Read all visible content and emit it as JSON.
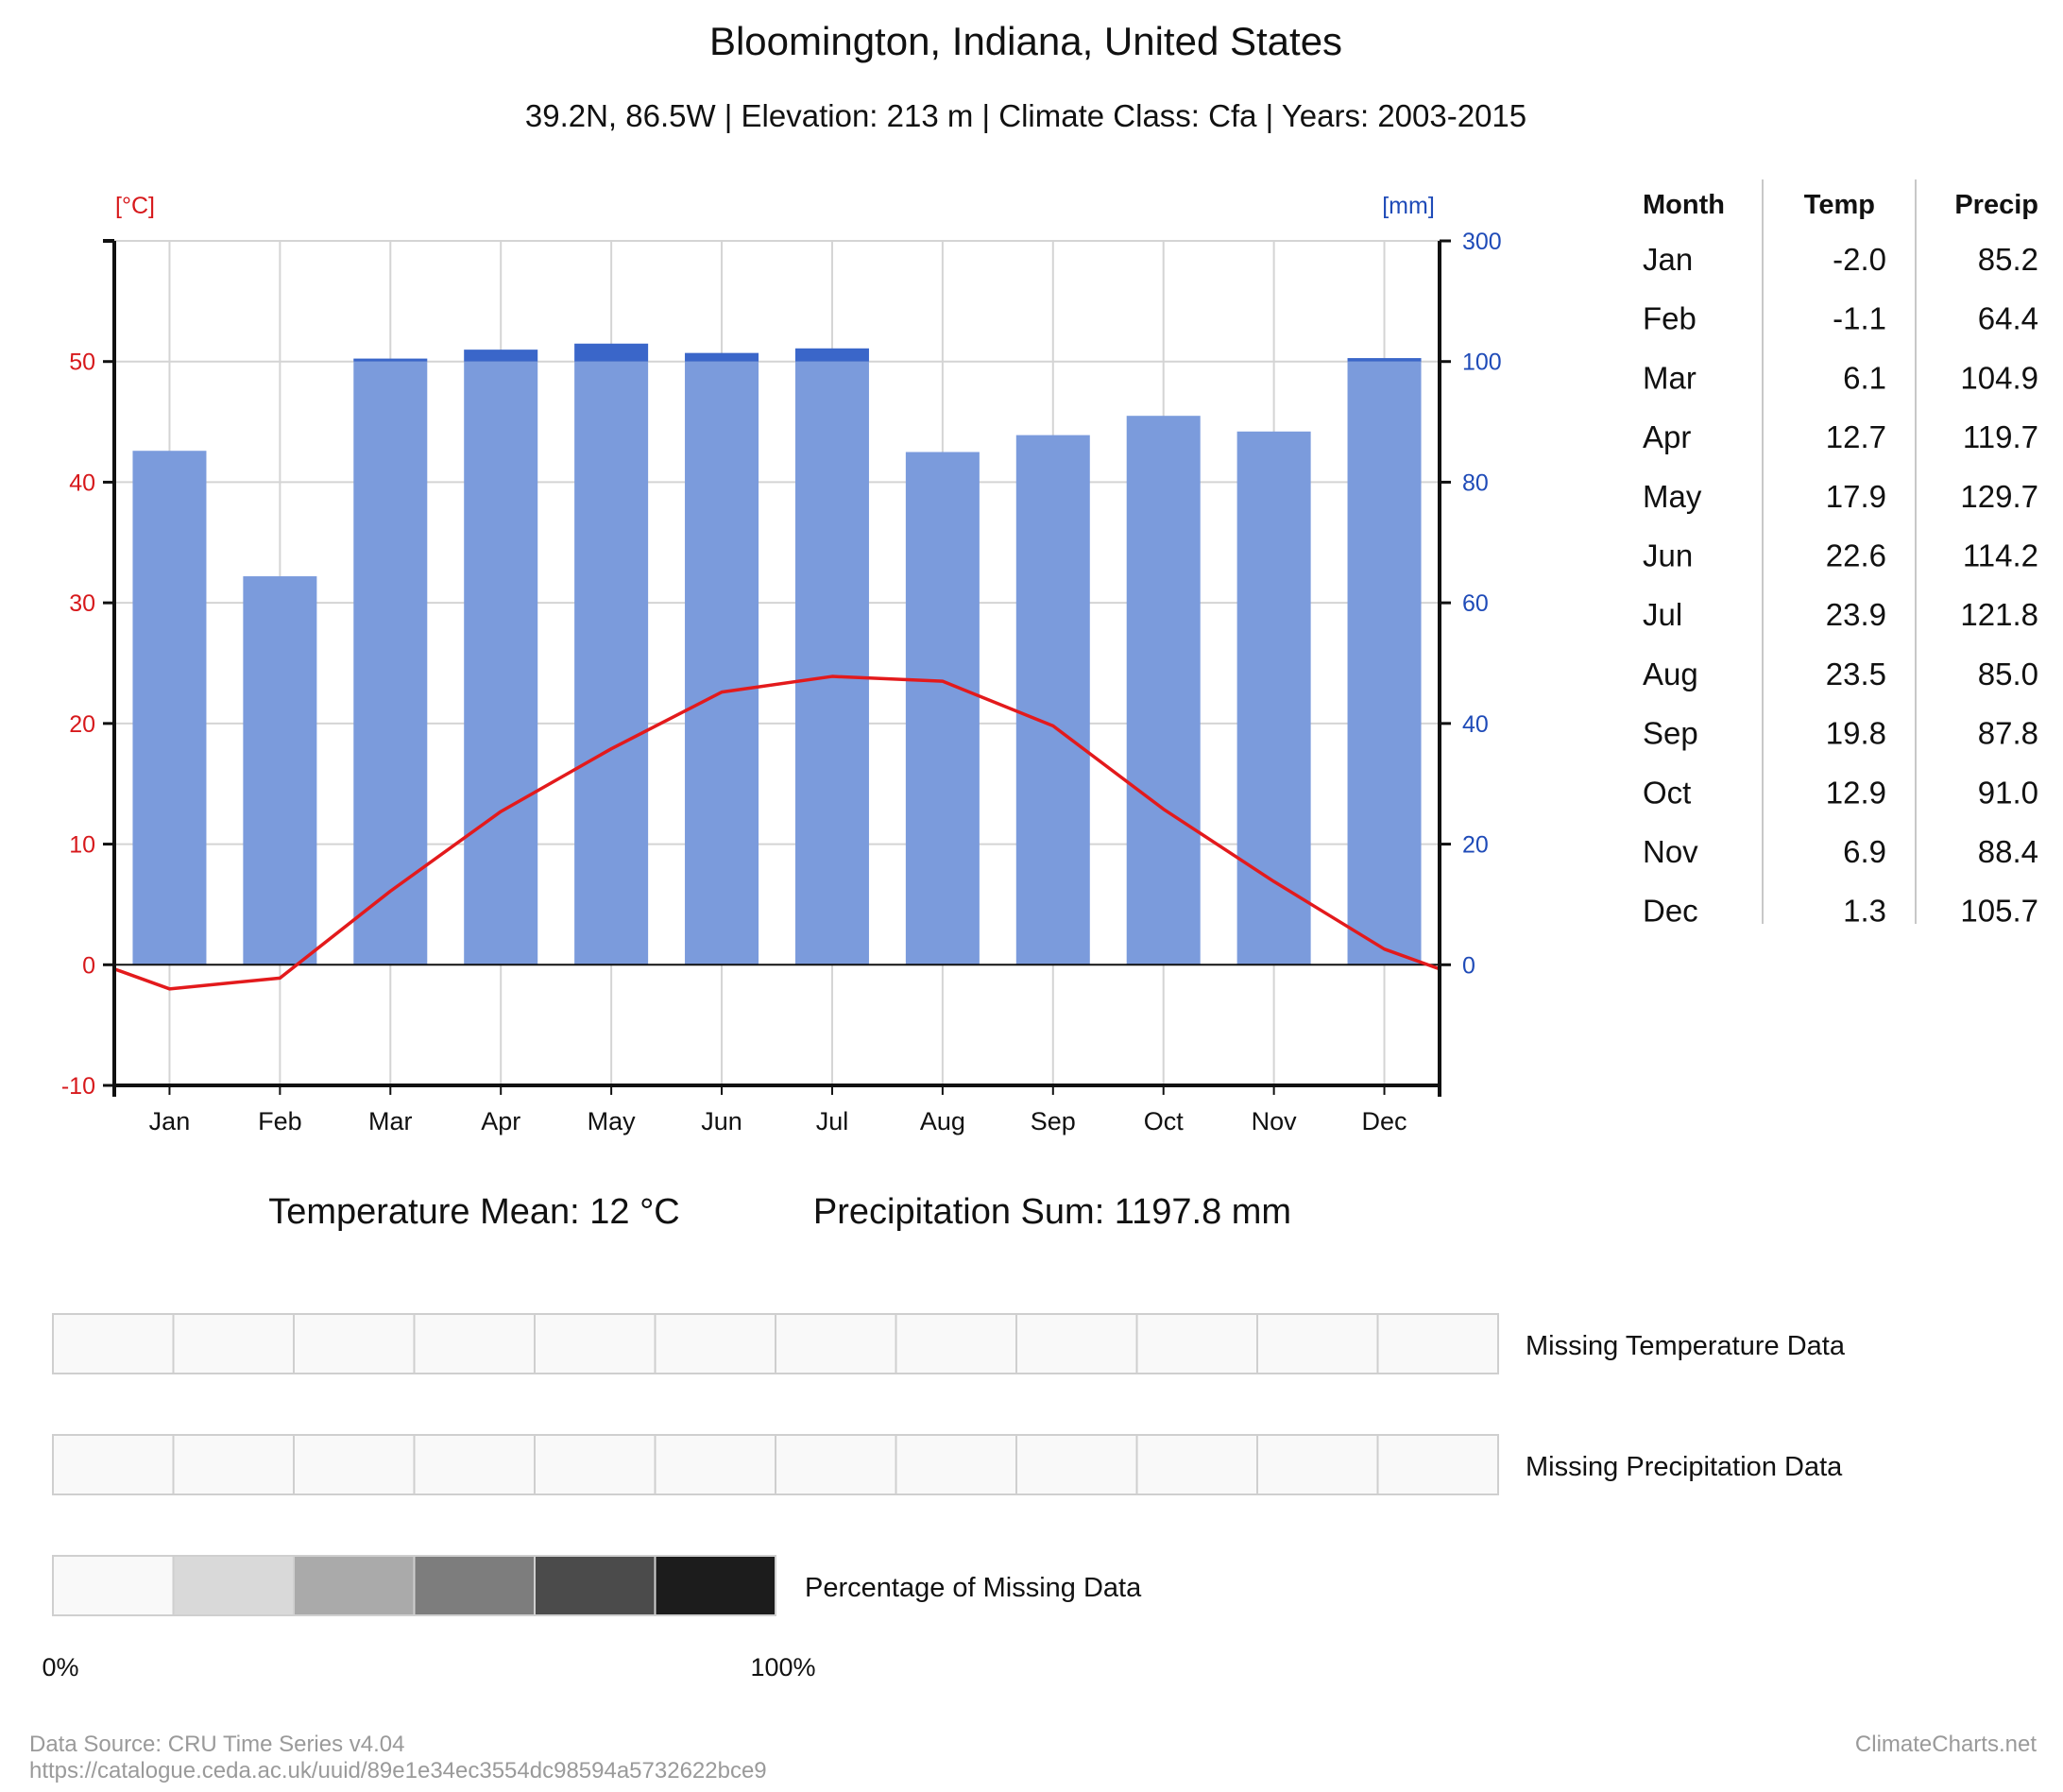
{
  "header": {
    "title": "Bloomington, Indiana, United States",
    "subtitle": "39.2N, 86.5W | Elevation: 213 m | Climate Class: Cfa | Years: 2003-2015"
  },
  "chart_data": {
    "type": "bar",
    "categories": [
      "Jan",
      "Feb",
      "Mar",
      "Apr",
      "May",
      "Jun",
      "Jul",
      "Aug",
      "Sep",
      "Oct",
      "Nov",
      "Dec"
    ],
    "series": [
      {
        "name": "Temp",
        "kind": "line",
        "axis": "left",
        "unit": "[°C]",
        "values": [
          -2.0,
          -1.1,
          6.1,
          12.7,
          17.9,
          22.6,
          23.9,
          23.5,
          19.8,
          12.9,
          6.9,
          1.3
        ]
      },
      {
        "name": "Precip",
        "kind": "bar",
        "axis": "right",
        "unit": "[mm]",
        "values": [
          85.2,
          64.4,
          104.9,
          119.7,
          129.7,
          114.2,
          121.8,
          85.0,
          87.8,
          91.0,
          88.4,
          105.7
        ]
      }
    ],
    "left_axis": {
      "label": "[°C]",
      "ylim": [
        -10,
        60
      ],
      "ticks": [
        -10,
        0,
        10,
        20,
        30,
        40,
        50
      ]
    },
    "right_axis": {
      "label": "[mm]",
      "ylim": [
        0,
        300
      ],
      "ticks": [
        0,
        20,
        40,
        60,
        80,
        100,
        300
      ]
    },
    "grid": true,
    "colors": {
      "temp": "#e31a1c",
      "precip": "#7b9bdc",
      "precip_over100": "#3a66c9",
      "left_axis": "#d7191c",
      "right_axis": "#1f4bb8"
    }
  },
  "table": {
    "headers": [
      "Month",
      "Temp",
      "Precip"
    ],
    "rows": [
      [
        "Jan",
        "-2.0",
        "85.2"
      ],
      [
        "Feb",
        "-1.1",
        "64.4"
      ],
      [
        "Mar",
        "6.1",
        "104.9"
      ],
      [
        "Apr",
        "12.7",
        "119.7"
      ],
      [
        "May",
        "17.9",
        "129.7"
      ],
      [
        "Jun",
        "22.6",
        "114.2"
      ],
      [
        "Jul",
        "23.9",
        "121.8"
      ],
      [
        "Aug",
        "23.5",
        "85.0"
      ],
      [
        "Sep",
        "19.8",
        "87.8"
      ],
      [
        "Oct",
        "12.9",
        "91.0"
      ],
      [
        "Nov",
        "6.9",
        "88.4"
      ],
      [
        "Dec",
        "1.3",
        "105.7"
      ]
    ]
  },
  "summary": {
    "temp_mean": "Temperature Mean: 12 °C",
    "precip_sum": "Precipitation Sum: 1197.8 mm"
  },
  "missing": {
    "temp_label": "Missing Temperature Data",
    "precip_label": "Missing Precipitation Data",
    "temp_values": [
      0,
      0,
      0,
      0,
      0,
      0,
      0,
      0,
      0,
      0,
      0,
      0
    ],
    "precip_values": [
      0,
      0,
      0,
      0,
      0,
      0,
      0,
      0,
      0,
      0,
      0,
      0
    ],
    "legend_label": "Percentage of Missing Data",
    "legend_colors": [
      "#f9f9f9",
      "#d9d9d9",
      "#aaaaaa",
      "#7d7d7d",
      "#4b4b4b",
      "#1c1c1c"
    ],
    "legend_min": "0%",
    "legend_max": "100%"
  },
  "footer": {
    "source_line1": "Data Source: CRU Time Series v4.04",
    "source_line2": "https://catalogue.ceda.ac.uk/uuid/89e1e34ec3554dc98594a5732622bce9",
    "brand": "ClimateCharts.net"
  }
}
